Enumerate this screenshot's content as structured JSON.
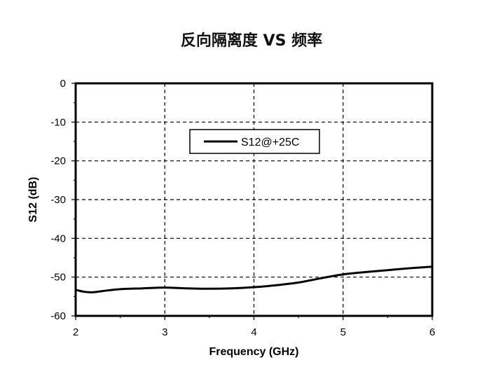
{
  "chart_data": {
    "type": "line",
    "title": "反向隔离度 VS 频率",
    "xlabel": "Frequency (GHz)",
    "ylabel": "S12 (dB)",
    "xlim": [
      2,
      6
    ],
    "ylim": [
      -60,
      0
    ],
    "xticks": [
      2,
      3,
      4,
      5,
      6
    ],
    "yticks": [
      0,
      -10,
      -20,
      -30,
      -40,
      -50,
      -60
    ],
    "grid": true,
    "legend_position": "top-center",
    "series": [
      {
        "name": "S12@+25C",
        "color": "#000000",
        "x": [
          2.0,
          2.1,
          2.2,
          2.3,
          2.5,
          2.75,
          3.0,
          3.25,
          3.5,
          3.75,
          4.0,
          4.25,
          4.5,
          4.75,
          5.0,
          5.25,
          5.5,
          5.75,
          6.0
        ],
        "y": [
          -53.3,
          -53.8,
          -53.9,
          -53.6,
          -53.1,
          -52.9,
          -52.7,
          -52.9,
          -53.0,
          -52.9,
          -52.6,
          -52.1,
          -51.4,
          -50.3,
          -49.3,
          -48.7,
          -48.2,
          -47.7,
          -47.3
        ]
      }
    ]
  }
}
